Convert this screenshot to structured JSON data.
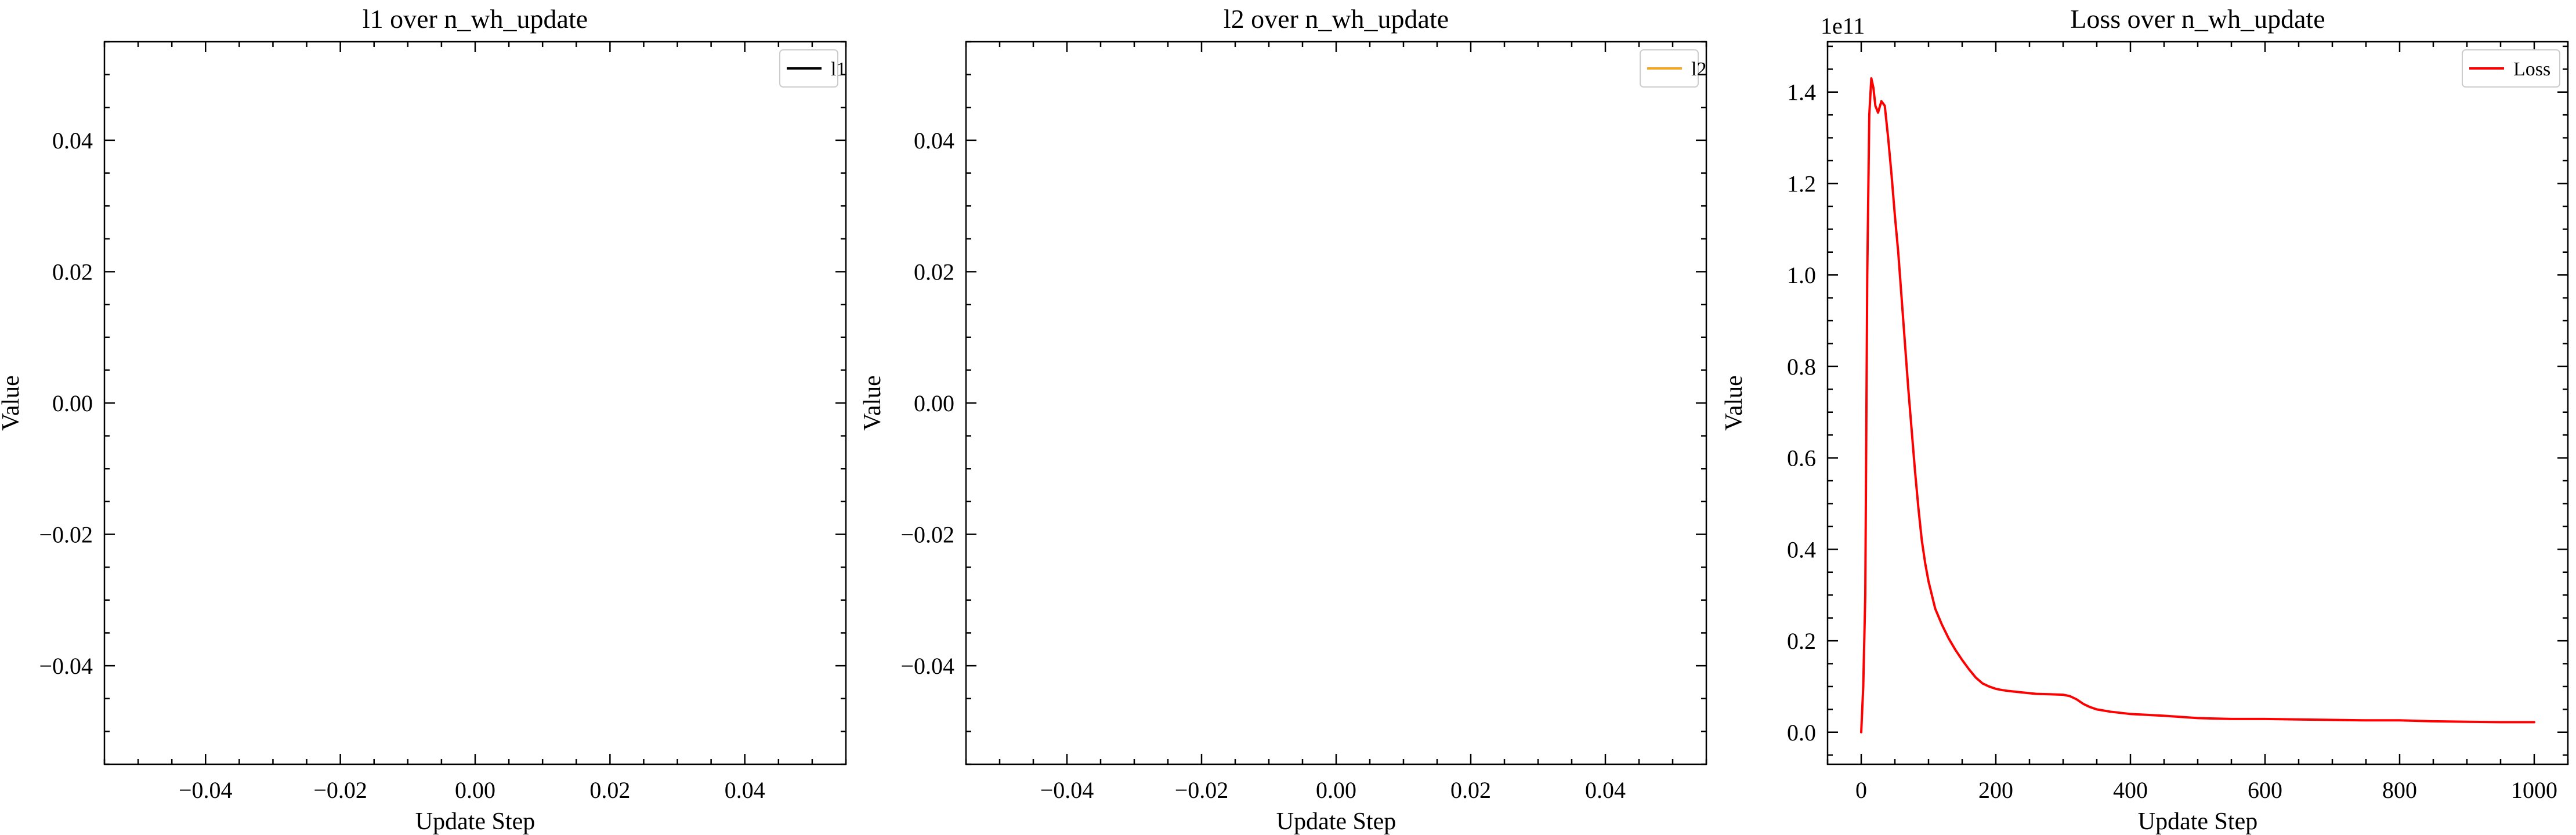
{
  "chart_data": [
    {
      "type": "line",
      "title": "l1 over n_wh_update",
      "xlabel": "Update Step",
      "ylabel": "Value",
      "xlim": [
        -0.055,
        0.055
      ],
      "ylim": [
        -0.055,
        0.055
      ],
      "xticks": [
        -0.04,
        -0.02,
        0.0,
        0.02,
        0.04
      ],
      "xtick_labels": [
        "−0.04",
        "−0.02",
        "0.00",
        "0.02",
        "0.04"
      ],
      "yticks": [
        -0.04,
        -0.02,
        0.0,
        0.02,
        0.04
      ],
      "ytick_labels": [
        "−0.04",
        "−0.02",
        "0.00",
        "0.02",
        "0.04"
      ],
      "legend_position": "top-right",
      "series": [
        {
          "name": "l1",
          "color": "#000000",
          "x": [],
          "y": []
        }
      ]
    },
    {
      "type": "line",
      "title": "l2 over n_wh_update",
      "xlabel": "Update Step",
      "ylabel": "Value",
      "xlim": [
        -0.055,
        0.055
      ],
      "ylim": [
        -0.055,
        0.055
      ],
      "xticks": [
        -0.04,
        -0.02,
        0.0,
        0.02,
        0.04
      ],
      "xtick_labels": [
        "−0.04",
        "−0.02",
        "0.00",
        "0.02",
        "0.04"
      ],
      "yticks": [
        -0.04,
        -0.02,
        0.0,
        0.02,
        0.04
      ],
      "ytick_labels": [
        "−0.04",
        "−0.02",
        "0.00",
        "0.02",
        "0.04"
      ],
      "legend_position": "top-right",
      "series": [
        {
          "name": "l2",
          "color": "#f5a623",
          "x": [],
          "y": []
        }
      ]
    },
    {
      "type": "line",
      "title": "Loss over n_wh_update",
      "xlabel": "Update Step",
      "ylabel": "Value",
      "offset_text": "1e11",
      "xlim": [
        -50,
        1050
      ],
      "ylim": [
        -0.07,
        1.51
      ],
      "xticks": [
        0,
        200,
        400,
        600,
        800,
        1000
      ],
      "xtick_labels": [
        "0",
        "200",
        "400",
        "600",
        "800",
        "1000"
      ],
      "yticks": [
        0.0,
        0.2,
        0.4,
        0.6,
        0.8,
        1.0,
        1.2,
        1.4
      ],
      "ytick_labels": [
        "0.0",
        "0.2",
        "0.4",
        "0.6",
        "0.8",
        "1.0",
        "1.2",
        "1.4"
      ],
      "legend_position": "top-right",
      "series": [
        {
          "name": "Loss",
          "color": "#ff0000",
          "x": [
            0,
            3,
            6,
            9,
            12,
            15,
            18,
            21,
            25,
            30,
            35,
            40,
            45,
            50,
            55,
            60,
            65,
            70,
            75,
            80,
            85,
            90,
            95,
            100,
            110,
            120,
            130,
            140,
            150,
            160,
            170,
            180,
            190,
            200,
            210,
            220,
            240,
            260,
            280,
            300,
            310,
            320,
            330,
            340,
            350,
            370,
            400,
            450,
            500,
            550,
            600,
            650,
            700,
            750,
            800,
            850,
            900,
            950,
            1000
          ],
          "y": [
            0.0,
            0.1,
            0.3,
            1.0,
            1.35,
            1.43,
            1.41,
            1.37,
            1.355,
            1.38,
            1.37,
            1.3,
            1.22,
            1.13,
            1.05,
            0.95,
            0.85,
            0.75,
            0.66,
            0.57,
            0.49,
            0.42,
            0.37,
            0.33,
            0.27,
            0.235,
            0.205,
            0.18,
            0.158,
            0.138,
            0.12,
            0.107,
            0.1,
            0.095,
            0.092,
            0.09,
            0.087,
            0.084,
            0.083,
            0.082,
            0.079,
            0.072,
            0.062,
            0.055,
            0.05,
            0.045,
            0.04,
            0.036,
            0.031,
            0.029,
            0.029,
            0.028,
            0.027,
            0.026,
            0.026,
            0.024,
            0.023,
            0.022,
            0.022
          ]
        }
      ]
    }
  ]
}
